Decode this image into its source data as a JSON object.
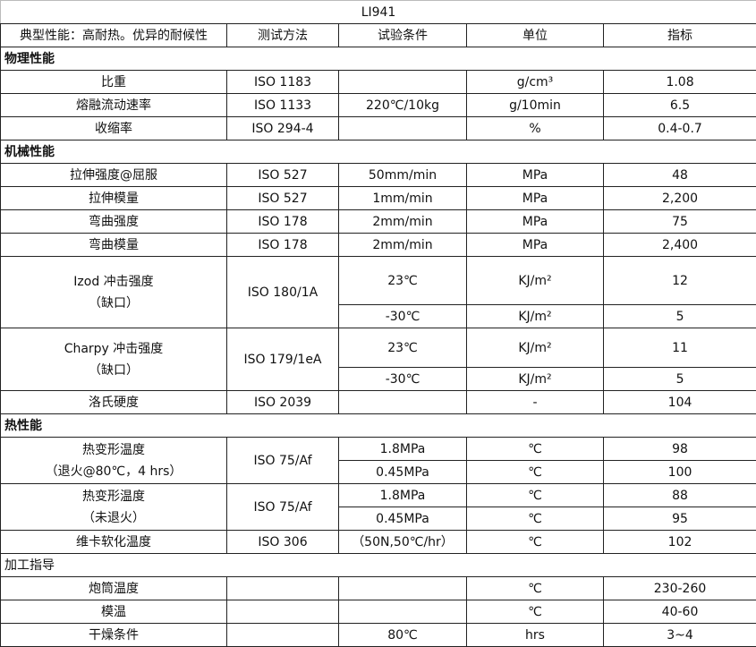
{
  "title": "LI941",
  "header": [
    "典型性能：高耐热。优异的耐候性",
    "测试方法",
    "试验条件",
    "单位",
    "指标"
  ],
  "sections": [
    {
      "title": "物理性能",
      "bold": true,
      "groups": [
        {
          "property": "比重",
          "method": "ISO 1183",
          "rows": [
            {
              "condition": "",
              "unit": "g/cm³",
              "value": "1.08"
            }
          ]
        },
        {
          "property": "熔融流动速率",
          "method": "ISO 1133",
          "rows": [
            {
              "condition": "220℃/10kg",
              "unit": "g/10min",
              "value": "6.5"
            }
          ]
        },
        {
          "property": "收缩率",
          "method": "ISO 294-4",
          "rows": [
            {
              "condition": "",
              "unit": "%",
              "value": "0.4-0.7"
            }
          ]
        }
      ]
    },
    {
      "title": "机械性能",
      "bold": true,
      "groups": [
        {
          "property": "拉伸强度@屈服",
          "method": "ISO 527",
          "rows": [
            {
              "condition": "50mm/min",
              "unit": "MPa",
              "value": "48"
            }
          ]
        },
        {
          "property": "拉伸模量",
          "method": "ISO 527",
          "rows": [
            {
              "condition": "1mm/min",
              "unit": "MPa",
              "value": "2,200"
            }
          ]
        },
        {
          "property": "弯曲强度",
          "method": "ISO 178",
          "rows": [
            {
              "condition": "2mm/min",
              "unit": "MPa",
              "value": "75"
            }
          ]
        },
        {
          "property": "弯曲模量",
          "method": "ISO 178",
          "rows": [
            {
              "condition": "2mm/min",
              "unit": "MPa",
              "value": "2,400"
            }
          ]
        },
        {
          "property": "Izod 冲击强度\n（缺口）",
          "method": "ISO 180/1A",
          "rows": [
            {
              "condition": "23℃",
              "unit": "KJ/m²",
              "value": "12"
            },
            {
              "condition": "-30℃",
              "unit": "KJ/m²",
              "value": "5"
            }
          ]
        },
        {
          "property": "Charpy 冲击强度\n（缺口）",
          "method": "ISO 179/1eA",
          "rows": [
            {
              "condition": "23℃",
              "unit": "KJ/m²",
              "value": "11"
            },
            {
              "condition": "-30℃",
              "unit": "KJ/m²",
              "value": "5"
            }
          ]
        },
        {
          "property": "洛氏硬度",
          "method": "ISO 2039",
          "rows": [
            {
              "condition": "",
              "unit": "-",
              "value": "104"
            }
          ]
        }
      ]
    },
    {
      "title": "热性能",
      "bold": true,
      "groups": [
        {
          "property": "热变形温度\n（退火@80℃，4 hrs）",
          "method": "ISO 75/Af",
          "rows": [
            {
              "condition": "1.8MPa",
              "unit": "℃",
              "value": "98"
            },
            {
              "condition": "0.45MPa",
              "unit": "℃",
              "value": "100"
            }
          ]
        },
        {
          "property": "热变形温度\n（未退火）",
          "method": "ISO 75/Af",
          "rows": [
            {
              "condition": "1.8MPa",
              "unit": "℃",
              "value": "88"
            },
            {
              "condition": "0.45MPa",
              "unit": "℃",
              "value": "95"
            }
          ]
        },
        {
          "property": "维卡软化温度",
          "method": "ISO 306",
          "rows": [
            {
              "condition": "（50N,50℃/hr）",
              "unit": "℃",
              "value": "102"
            }
          ]
        }
      ]
    },
    {
      "title": "加工指导",
      "bold": false,
      "groups": [
        {
          "property": "炮筒温度",
          "method": "",
          "rows": [
            {
              "condition": "",
              "unit": "℃",
              "value": "230-260"
            }
          ]
        },
        {
          "property": "模温",
          "method": "",
          "rows": [
            {
              "condition": "",
              "unit": "℃",
              "value": "40-60"
            }
          ]
        },
        {
          "property": "干燥条件",
          "method": "",
          "rows": [
            {
              "condition": "80℃",
              "unit": "hrs",
              "value": "3~4"
            }
          ]
        }
      ]
    }
  ]
}
